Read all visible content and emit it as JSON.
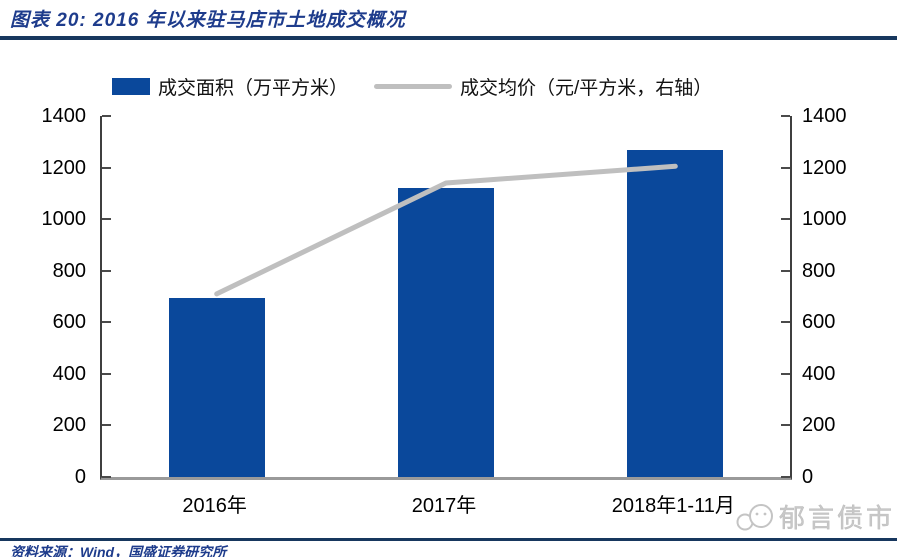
{
  "header": {
    "title": "图表 20: 2016 年以来驻马店市土地成交概况"
  },
  "legend": [
    {
      "label": "成交面积（万平方米）",
      "marker": "bar",
      "color": "#0a489b"
    },
    {
      "label": "成交均价（元/平方米，右轴）",
      "marker": "line",
      "color": "#bfbfbf"
    }
  ],
  "watermark": {
    "text": "郁言债市"
  },
  "footer": {
    "source": "资料来源：Wind，国盛证券研究所"
  },
  "colors": {
    "accent_navy": "#17375e",
    "bar_blue": "#0a489b",
    "line_gray": "#bfbfbf"
  },
  "chart_data": {
    "type": "combo",
    "categories": [
      "2016年",
      "2017年",
      "2018年1-11月"
    ],
    "series": [
      {
        "name": "成交面积（万平方米）",
        "type": "bar",
        "axis": "left",
        "color": "#0a489b",
        "values": [
          695,
          1120,
          1270
        ]
      },
      {
        "name": "成交均价（元/平方米，右轴）",
        "type": "line",
        "axis": "right",
        "color": "#bfbfbf",
        "values": [
          710,
          1140,
          1205
        ]
      }
    ],
    "left_axis": {
      "min": 0,
      "max": 1400,
      "step": 200,
      "ticks": [
        0,
        200,
        400,
        600,
        800,
        1000,
        1200,
        1400
      ]
    },
    "right_axis": {
      "min": 0,
      "max": 1400,
      "step": 200,
      "ticks": [
        0,
        200,
        400,
        600,
        800,
        1000,
        1200,
        1400
      ]
    },
    "grid": false,
    "legend_position": "top"
  }
}
